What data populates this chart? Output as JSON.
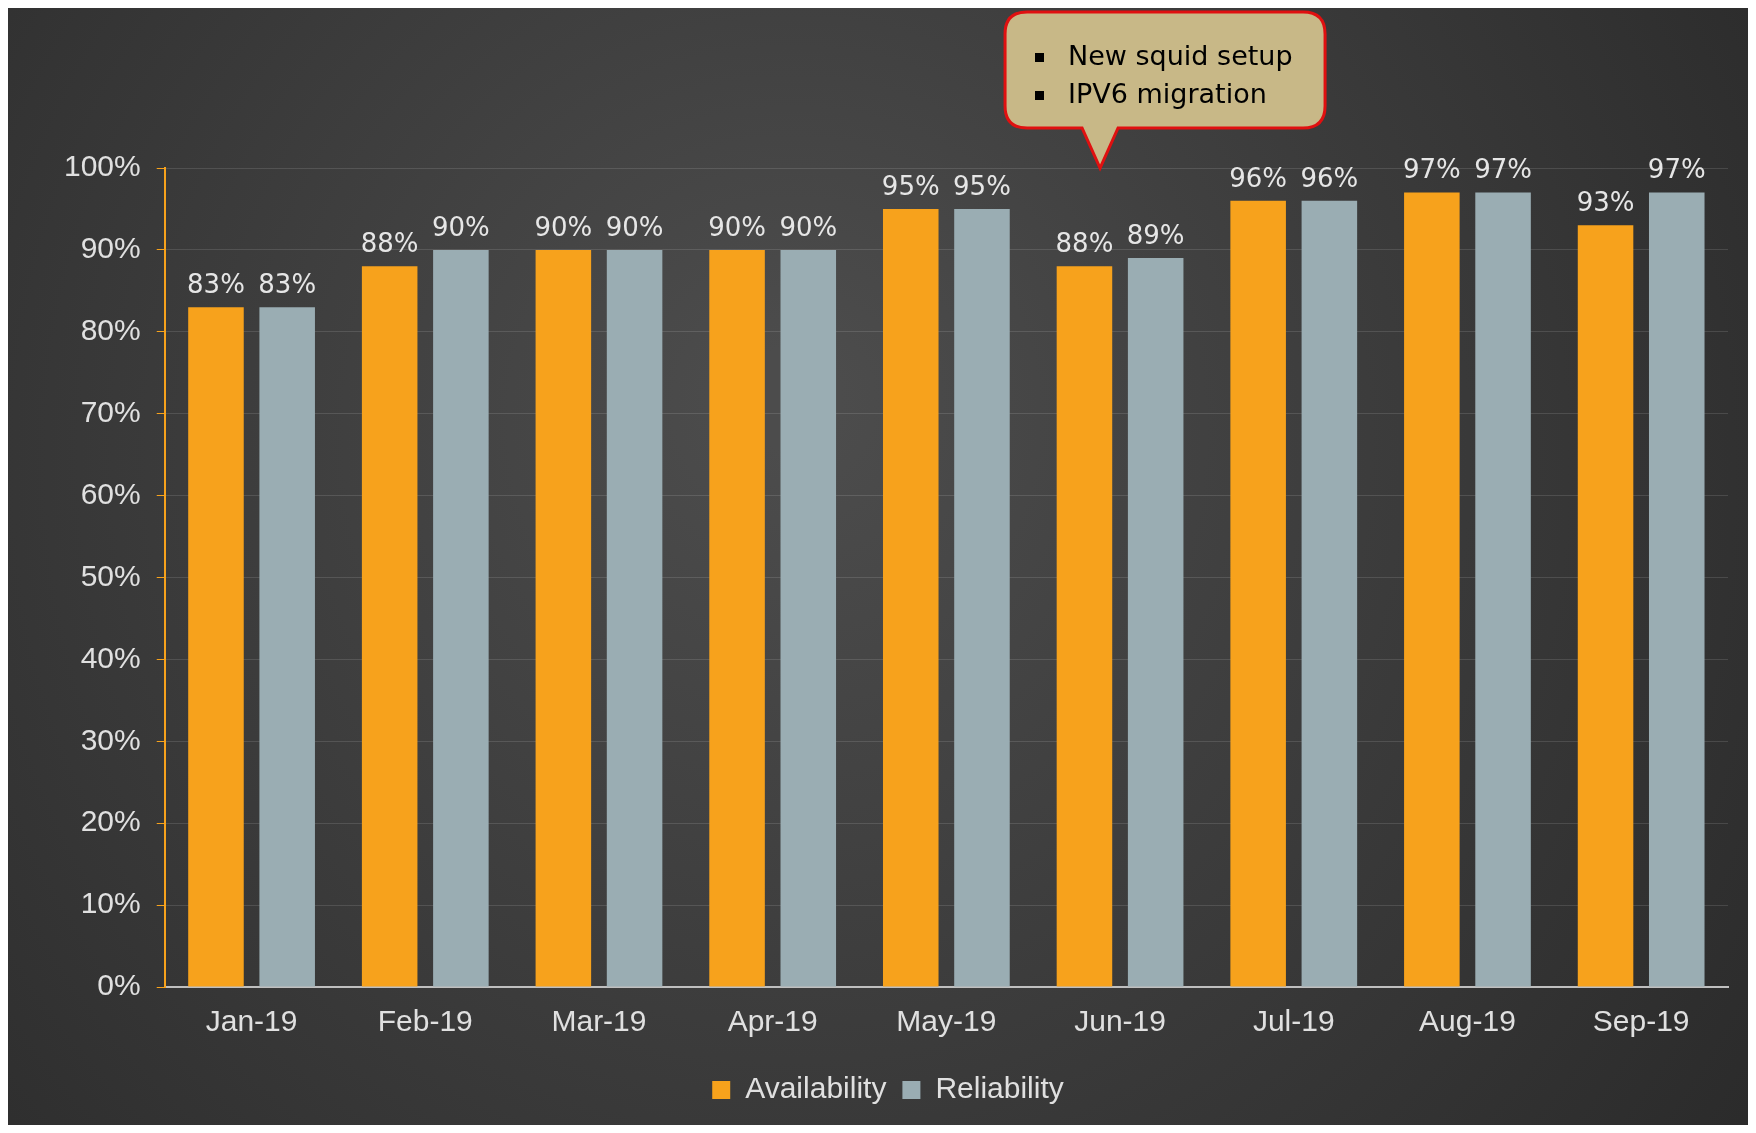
{
  "chart_data": {
    "type": "bar",
    "categories": [
      "Jan-19",
      "Feb-19",
      "Mar-19",
      "Apr-19",
      "May-19",
      "Jun-19",
      "Jul-19",
      "Aug-19",
      "Sep-19"
    ],
    "series": [
      {
        "name": "Availability",
        "color": "#f7a21c",
        "values": [
          83,
          88,
          90,
          90,
          95,
          88,
          96,
          97,
          93
        ],
        "value_labels": [
          "83%",
          "88%",
          "90%",
          "90%",
          "95%",
          "88%",
          "96%",
          "97%",
          "93%"
        ]
      },
      {
        "name": "Reliability",
        "color": "#9aadb3",
        "values": [
          83,
          90,
          90,
          90,
          95,
          89,
          96,
          97,
          97
        ],
        "value_labels": [
          "83%",
          "90%",
          "90%",
          "90%",
          "95%",
          "89%",
          "96%",
          "97%",
          "97%"
        ]
      }
    ],
    "ylim": [
      0,
      100
    ],
    "yticks": [
      {
        "value": 0,
        "label": "0%"
      },
      {
        "value": 10,
        "label": "10%"
      },
      {
        "value": 20,
        "label": "20%"
      },
      {
        "value": 30,
        "label": "30%"
      },
      {
        "value": 40,
        "label": "40%"
      },
      {
        "value": 50,
        "label": "50%"
      },
      {
        "value": 60,
        "label": "60%"
      },
      {
        "value": 70,
        "label": "70%"
      },
      {
        "value": 80,
        "label": "80%"
      },
      {
        "value": 90,
        "label": "90%"
      },
      {
        "value": 100,
        "label": "100%"
      }
    ],
    "grid": "y",
    "legend": "bottom",
    "annotations": [
      "New squid setup",
      "IPV6 migration"
    ]
  }
}
